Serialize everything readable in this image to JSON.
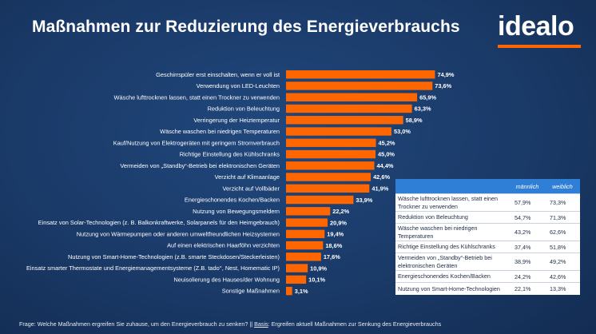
{
  "title": "Maßnahmen zur Reduzierung des Energieverbrauchs",
  "logo": "idealo",
  "colors": {
    "bar": "#ff6600",
    "accent": "#2f7fd6",
    "background": "#1a3a68"
  },
  "chart_data": {
    "type": "bar",
    "orientation": "horizontal",
    "title": "Maßnahmen zur Reduzierung des Energieverbrauchs",
    "unit": "%",
    "xlim": [
      0,
      80
    ],
    "grid": false,
    "categories": [
      "Geschirrspüler erst einschalten, wenn er voll ist",
      "Verwendung von LED-Leuchten",
      "Wäsche lufttrocknen lassen, statt einen Trockner zu verwenden",
      "Reduktion von Beleuchtung",
      "Verringerung der Heiztemperatur",
      "Wäsche waschen bei niedrigen Temperaturen",
      "Kauf/Nutzung von Elektrogeräten mit geringem Stromverbrauch",
      "Richtige Einstellung des Kühlschranks",
      "Vermeiden von „Standby“-Betrieb bei elektronischen Geräten",
      "Verzicht auf Klimaanlage",
      "Verzicht auf Vollbäder",
      "Energieschonendes Kochen/Backen",
      "Nutzung von Bewegungsmeldern",
      "Einsatz von Solar-Technologien (z. B. Balkonkraftwerke, Solarpanels für den Heimgebrauch)",
      "Nutzung von Wärmepumpen oder anderen umweltfreundlichen Heizsystemen",
      "Auf einen elektrischen Haarföhn verzichten",
      "Nutzung von Smart-Home-Technologien (z.B. smarte Steckdosen/Steckerleisten)",
      "Einsatz smarter Thermostate und Energiemanagementsysteme (Z.B. tado°, Nest, Homematic IP)",
      "Neuisolierung des Hauses/der Wohnung",
      "Sonstige Maßnahmen"
    ],
    "values": [
      74.9,
      73.6,
      65.9,
      63.3,
      58.9,
      53.0,
      45.2,
      45.0,
      44.4,
      42.6,
      41.9,
      33.9,
      22.2,
      20.9,
      19.4,
      18.6,
      17.6,
      10.9,
      10.1,
      3.1
    ],
    "labels": [
      "74,9%",
      "73,6%",
      "65,9%",
      "63,3%",
      "58,9%",
      "53,0%",
      "45,2%",
      "45,0%",
      "44,4%",
      "42,6%",
      "41,9%",
      "33,9%",
      "22,2%",
      "20,9%",
      "19,4%",
      "18,6%",
      "17,6%",
      "10,9%",
      "10,1%",
      "3,1%"
    ]
  },
  "comparison_table": {
    "headers": [
      "",
      "männlich",
      "weiblich"
    ],
    "rows": [
      {
        "label": "Wäsche lufttrocknen lassen, statt einen Trockner zu verwenden",
        "male": "57,9%",
        "female": "73,3%"
      },
      {
        "label": "Reduktion von Beleuchtung",
        "male": "54,7%",
        "female": "71,3%"
      },
      {
        "label": "Wäsche waschen bei niedrigen Temperaturen",
        "male": "43,2%",
        "female": "62,6%"
      },
      {
        "label": "Richtige Einstellung des Kühlschranks",
        "male": "37,4%",
        "female": "51,8%"
      },
      {
        "label": "Vermeiden von „Standby“-Betrieb bei elektronischen Geräten",
        "male": "38,9%",
        "female": "49,2%"
      },
      {
        "label": "Energieschonendes Kochen/Backen",
        "male": "24,2%",
        "female": "42,6%"
      },
      {
        "label": "Nutzung von Smart-Home-Technologien",
        "male": "22,1%",
        "female": "13,3%"
      }
    ]
  },
  "footer": {
    "question": "Frage: Welche Maßnahmen ergreifen Sie zuhause, um den Energieverbrauch zu senken? || ",
    "basis_label": "Basis",
    "basis_text": ": Ergreifen aktuell Maßnahmen zur Senkung des Energieverbrauchs"
  }
}
